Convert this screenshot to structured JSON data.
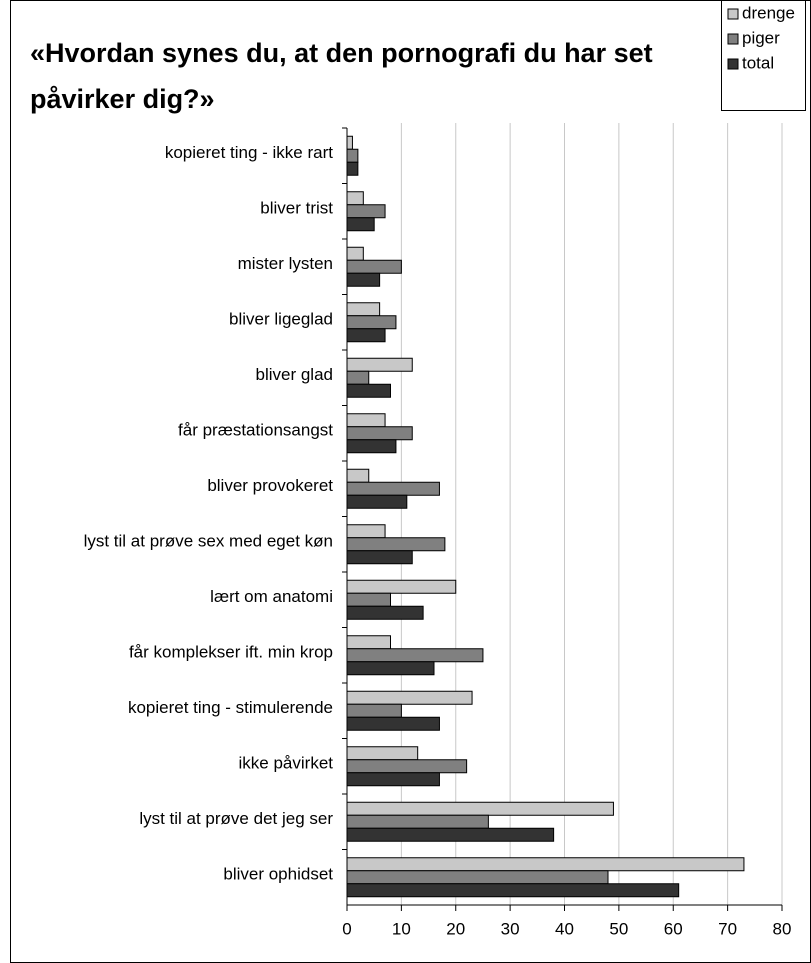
{
  "chart_data": {
    "type": "barh",
    "title": "«Hvordan synes du, at den pornografi du har set påvirker dig?»",
    "categories": [
      "kopieret ting - ikke rart",
      "bliver trist",
      "mister lysten",
      "bliver ligeglad",
      "bliver glad",
      "får præstationsangst",
      "bliver provokeret",
      "lyst til at prøve sex med eget køn",
      "lært om anatomi",
      "får komplekser ift. min krop",
      "kopieret ting - stimulerende",
      "ikke påvirket",
      "lyst til at prøve det jeg ser",
      "bliver ophidset"
    ],
    "series": [
      {
        "name": "drenge",
        "color": "#c8c8c8",
        "values": [
          1,
          3,
          3,
          6,
          12,
          7,
          4,
          7,
          20,
          8,
          23,
          13,
          49,
          73
        ]
      },
      {
        "name": "piger",
        "color": "#808080",
        "values": [
          2,
          7,
          10,
          9,
          4,
          12,
          17,
          18,
          8,
          25,
          10,
          22,
          26,
          48
        ]
      },
      {
        "name": "total",
        "color": "#333333",
        "values": [
          2,
          5,
          6,
          7,
          8,
          9,
          11,
          12,
          14,
          16,
          17,
          17,
          38,
          61
        ]
      }
    ],
    "xlim": [
      0,
      80
    ],
    "xticks": [
      0,
      10,
      20,
      30,
      40,
      50,
      60,
      70,
      80
    ],
    "grid": true,
    "legend": "top-right"
  }
}
